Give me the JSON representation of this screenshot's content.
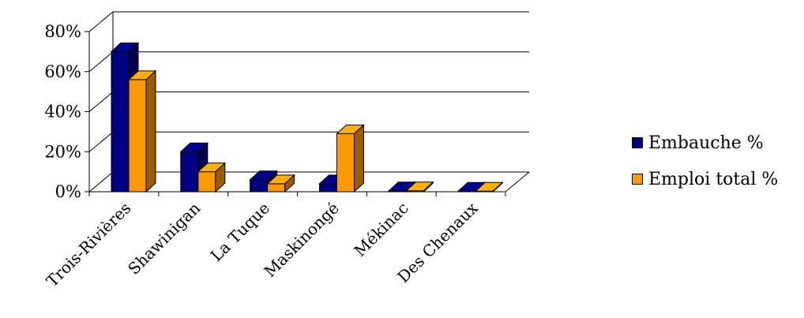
{
  "chart_data": {
    "type": "bar",
    "categories": [
      "Trois-Rivières",
      "Shawinigan",
      "La Tuque",
      "Maskinongé",
      "Mékinac",
      "Des Chenaux"
    ],
    "series": [
      {
        "name": "Embauche %",
        "values": [
          70,
          20,
          6,
          4,
          0.5,
          0.3
        ],
        "color": "#000080"
      },
      {
        "name": "Emploi total %",
        "values": [
          56,
          10,
          4,
          29,
          0.5,
          0.3
        ],
        "color": "#FF9900"
      }
    ],
    "y_ticks": [
      "0%",
      "20%",
      "40%",
      "60%",
      "80%"
    ],
    "ylim": [
      0,
      80
    ],
    "grid": true,
    "legend_position": "right",
    "style": "3d-clustered-column"
  }
}
